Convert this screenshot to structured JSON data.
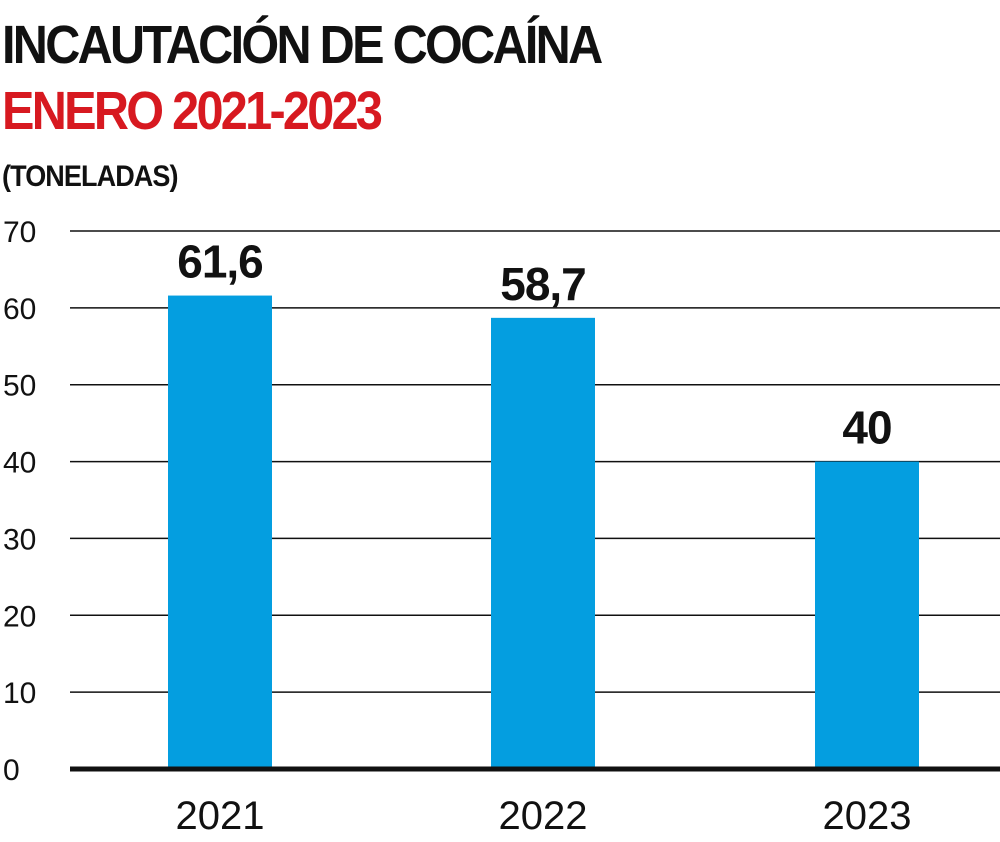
{
  "header": {
    "title_line1": "INCAUTACIÓN DE COCAÍNA",
    "title_line2": "ENERO 2021-2023",
    "unit": "(TONELADAS)"
  },
  "colors": {
    "bar": "#049ee0",
    "title_line2": "#d71920",
    "text": "#111111",
    "grid": "#111111"
  },
  "chart_data": {
    "type": "bar",
    "title": "INCAUTACIÓN DE COCAÍNA ENERO 2021-2023",
    "ylabel": "(TONELADAS)",
    "xlabel": "",
    "categories": [
      "2021",
      "2022",
      "2023"
    ],
    "values": [
      61.6,
      58.7,
      40
    ],
    "data_labels": [
      "61,6",
      "58,7",
      "40"
    ],
    "yticks": [
      0,
      10,
      20,
      30,
      40,
      50,
      60,
      70
    ],
    "ylim": [
      0,
      70
    ],
    "grid": true,
    "legend": "none"
  }
}
